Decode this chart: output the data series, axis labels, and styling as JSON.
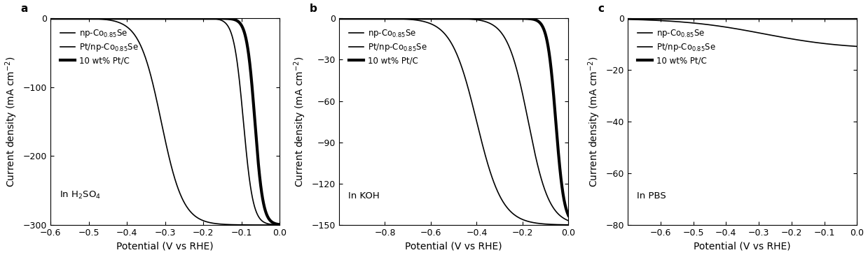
{
  "panels": [
    {
      "label": "a",
      "annotation": "In H$_2$SO$_4$",
      "xlim": [
        -0.6,
        0.0
      ],
      "ylim": [
        -300,
        0
      ],
      "xticks": [
        -0.6,
        -0.5,
        -0.4,
        -0.3,
        -0.2,
        -0.1,
        0.0
      ],
      "yticks": [
        0,
        -100,
        -200,
        -300
      ],
      "curves": [
        {
          "onset": -0.31,
          "k": 35,
          "limit": -300,
          "lw": 1.2
        },
        {
          "onset": -0.095,
          "k": 80,
          "limit": -300,
          "lw": 1.2
        },
        {
          "onset": -0.065,
          "k": 95,
          "limit": -300,
          "lw": 3.0
        }
      ]
    },
    {
      "label": "b",
      "annotation": "In KOH",
      "xlim": [
        -1.0,
        0.0
      ],
      "ylim": [
        -150,
        0
      ],
      "xticks": [
        -0.8,
        -0.6,
        -0.4,
        -0.2,
        0.0
      ],
      "yticks": [
        0,
        -30,
        -60,
        -90,
        -120,
        -150
      ],
      "curves": [
        {
          "onset": -0.4,
          "k": 18,
          "limit": -150,
          "lw": 1.2
        },
        {
          "onset": -0.175,
          "k": 22,
          "limit": -150,
          "lw": 1.2
        },
        {
          "onset": -0.055,
          "k": 55,
          "limit": -150,
          "lw": 3.0
        }
      ]
    },
    {
      "label": "c",
      "annotation": "In PBS",
      "xlim": [
        -0.7,
        0.0
      ],
      "ylim": [
        -80,
        0
      ],
      "xticks": [
        -0.6,
        -0.5,
        -0.4,
        -0.3,
        -0.2,
        -0.1,
        0.0
      ],
      "yticks": [
        0,
        -20,
        -40,
        -60,
        -80
      ],
      "curves": [
        {
          "onset": -0.285,
          "k": 8,
          "limit": -12,
          "lw": 1.2
        },
        {
          "onset": -0.085,
          "k": 10,
          "limit": -80,
          "lw": 1.2,
          "linear": true,
          "slope": -210
        },
        {
          "onset": -0.055,
          "k": 10,
          "limit": -80,
          "lw": 3.0,
          "linear": true,
          "slope": -250
        }
      ]
    }
  ],
  "legend_labels": [
    "np-Co$_{0.85}$Se",
    "Pt/np-Co$_{0.85}$Se",
    "10 wt% Pt/C"
  ],
  "legend_lws": [
    1.2,
    1.2,
    3.0
  ],
  "ylabel": "Current density (mA cm$^{-2}$)",
  "xlabel": "Potential (V vs RHE)",
  "fontsize": 9,
  "label_fontsize": 11
}
